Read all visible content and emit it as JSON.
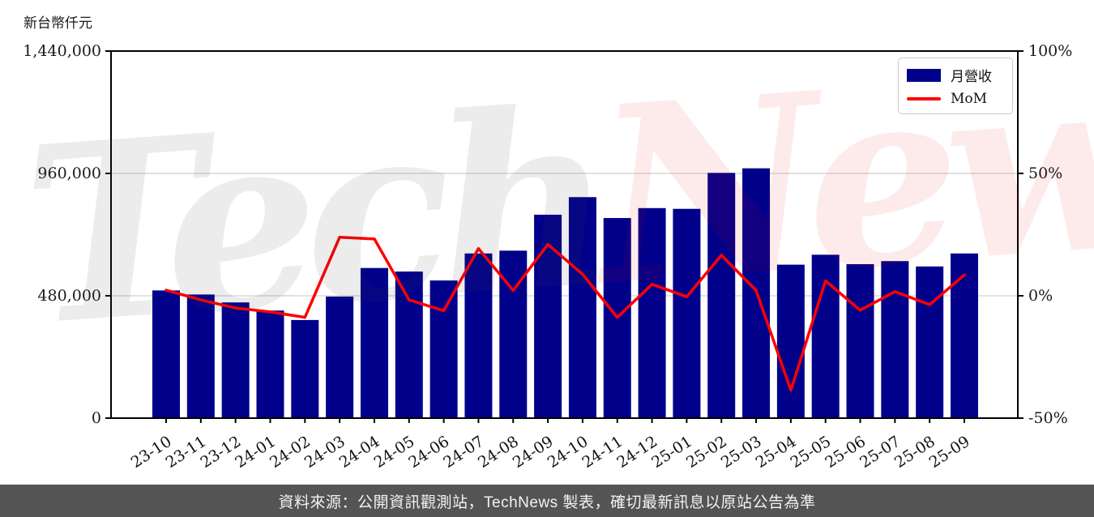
{
  "chart_data": {
    "type": "bar+line combo",
    "unit_label": "新台幣仟元",
    "categories": [
      "23-10",
      "23-11",
      "23-12",
      "24-01",
      "24-02",
      "24-03",
      "24-04",
      "24-05",
      "24-06",
      "24-07",
      "24-08",
      "24-09",
      "24-10",
      "24-11",
      "24-12",
      "25-01",
      "25-02",
      "25-03",
      "25-04",
      "25-05",
      "25-06",
      "25-07",
      "25-08",
      "25-09"
    ],
    "series": [
      {
        "name": "月營收",
        "type": "bar",
        "axis": "left",
        "color": "#00008B",
        "values": [
          501000,
          485000,
          454000,
          422000,
          385000,
          477000,
          589000,
          575000,
          540000,
          646000,
          657000,
          798000,
          867000,
          785000,
          824000,
          821000,
          962000,
          980000,
          602000,
          641000,
          604000,
          616000,
          595000,
          646000
        ]
      },
      {
        "name": "MoM",
        "type": "line",
        "axis": "right",
        "color": "#FF0000",
        "values": [
          2.3,
          -1.7,
          -5.0,
          -6.6,
          -8.8,
          23.9,
          23.2,
          -1.7,
          -6.1,
          19.3,
          2.2,
          21.0,
          8.8,
          -8.8,
          4.7,
          -0.4,
          16.6,
          2.2,
          -38.6,
          6.1,
          -5.9,
          1.7,
          -3.6,
          8.5
        ]
      }
    ],
    "left_axis": {
      "min": 0,
      "max": 1440000,
      "tick_values": [
        0,
        480000,
        960000,
        1440000
      ],
      "tick_labels": [
        "0",
        "480,000",
        "960,000",
        "1,440,000"
      ]
    },
    "right_axis": {
      "min": -50,
      "max": 100,
      "tick_values": [
        -50,
        0,
        50,
        100
      ],
      "tick_labels": [
        "-50%",
        "0%",
        "50%",
        "100%"
      ]
    },
    "grid": true,
    "legend_position": "top-right"
  },
  "watermark": {
    "part1": "Tech",
    "part2": "News"
  },
  "footer": {
    "text": "資料來源：公開資訊觀測站，TechNews 製表，確切最新訊息以原站公告為準"
  },
  "colors": {
    "bar": "#00008B",
    "line": "#FF0000",
    "grid": "#d9d9d9",
    "axis": "#000000",
    "banner_bg": "#545454",
    "banner_text": "#f2f2f2"
  }
}
